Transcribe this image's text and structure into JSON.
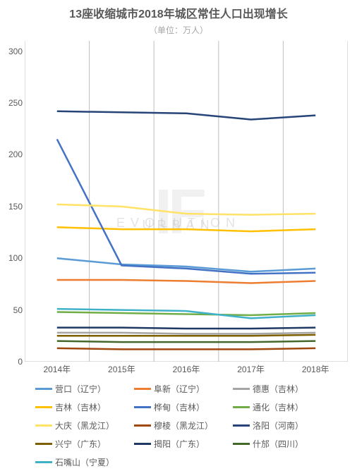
{
  "chart": {
    "type": "line",
    "title": "13座收缩城市2018年城区常住人口出现增长",
    "subtitle": "（单位：万人）",
    "title_fontsize": 16,
    "title_color": "#595959",
    "subtitle_fontsize": 12,
    "subtitle_color": "#a6a6a6",
    "background_color": "#ffffff",
    "plot_background_color": "#ffffff",
    "border_color": "#bfbfbf",
    "axis_label_fontsize": 12,
    "axis_label_color": "#595959",
    "x_categories": [
      "2014年",
      "2015年",
      "2016年",
      "2017年",
      "2018年"
    ],
    "ylim": [
      0,
      310
    ],
    "ytick_step": 50,
    "yticks": [
      0,
      50,
      100,
      150,
      200,
      250,
      300
    ],
    "gridlines_x": true,
    "gridlines_y": false,
    "line_width": 2.5,
    "watermark": {
      "big": "IF",
      "line1": "URBAN",
      "line2": "EVOLUTION"
    },
    "series": [
      {
        "name": "营口（辽宁）",
        "color": "#5b9bd5",
        "values": [
          100,
          94,
          92,
          87,
          90
        ]
      },
      {
        "name": "阜新（辽宁）",
        "color": "#ed7d31",
        "values": [
          79,
          79,
          78,
          76,
          78
        ]
      },
      {
        "name": "德惠（吉林）",
        "color": "#a5a5a5",
        "values": [
          28,
          28,
          27,
          27,
          28
        ]
      },
      {
        "name": "吉林（吉林）",
        "color": "#ffc000",
        "values": [
          130,
          128,
          128,
          126,
          128
        ]
      },
      {
        "name": "桦甸（吉林）",
        "color": "#4472c4",
        "values": [
          215,
          93,
          90,
          85,
          86
        ]
      },
      {
        "name": "通化（吉林）",
        "color": "#70ad47",
        "values": [
          48,
          47,
          46,
          45,
          47
        ]
      },
      {
        "name": "大庆（黑龙江）",
        "color": "#ffe266",
        "values": [
          152,
          150,
          143,
          142,
          143
        ]
      },
      {
        "name": "穆棱（黑龙江）",
        "color": "#9e480e",
        "values": [
          13,
          12,
          12,
          12,
          13
        ]
      },
      {
        "name": "洛阳（河南）",
        "color": "#264478",
        "values": [
          242,
          241,
          240,
          234,
          238
        ]
      },
      {
        "name": "兴宁（广东）",
        "color": "#7f6000",
        "values": [
          25,
          25,
          25,
          25,
          26
        ]
      },
      {
        "name": "揭阳（广东）",
        "color": "#1f3864",
        "values": [
          33,
          33,
          32,
          32,
          33
        ]
      },
      {
        "name": "什邡（四川）",
        "color": "#43682b",
        "values": [
          20,
          19,
          19,
          19,
          20
        ]
      },
      {
        "name": "石嘴山（宁夏）",
        "color": "#3fb1c9",
        "values": [
          51,
          50,
          49,
          42,
          45
        ]
      }
    ]
  }
}
